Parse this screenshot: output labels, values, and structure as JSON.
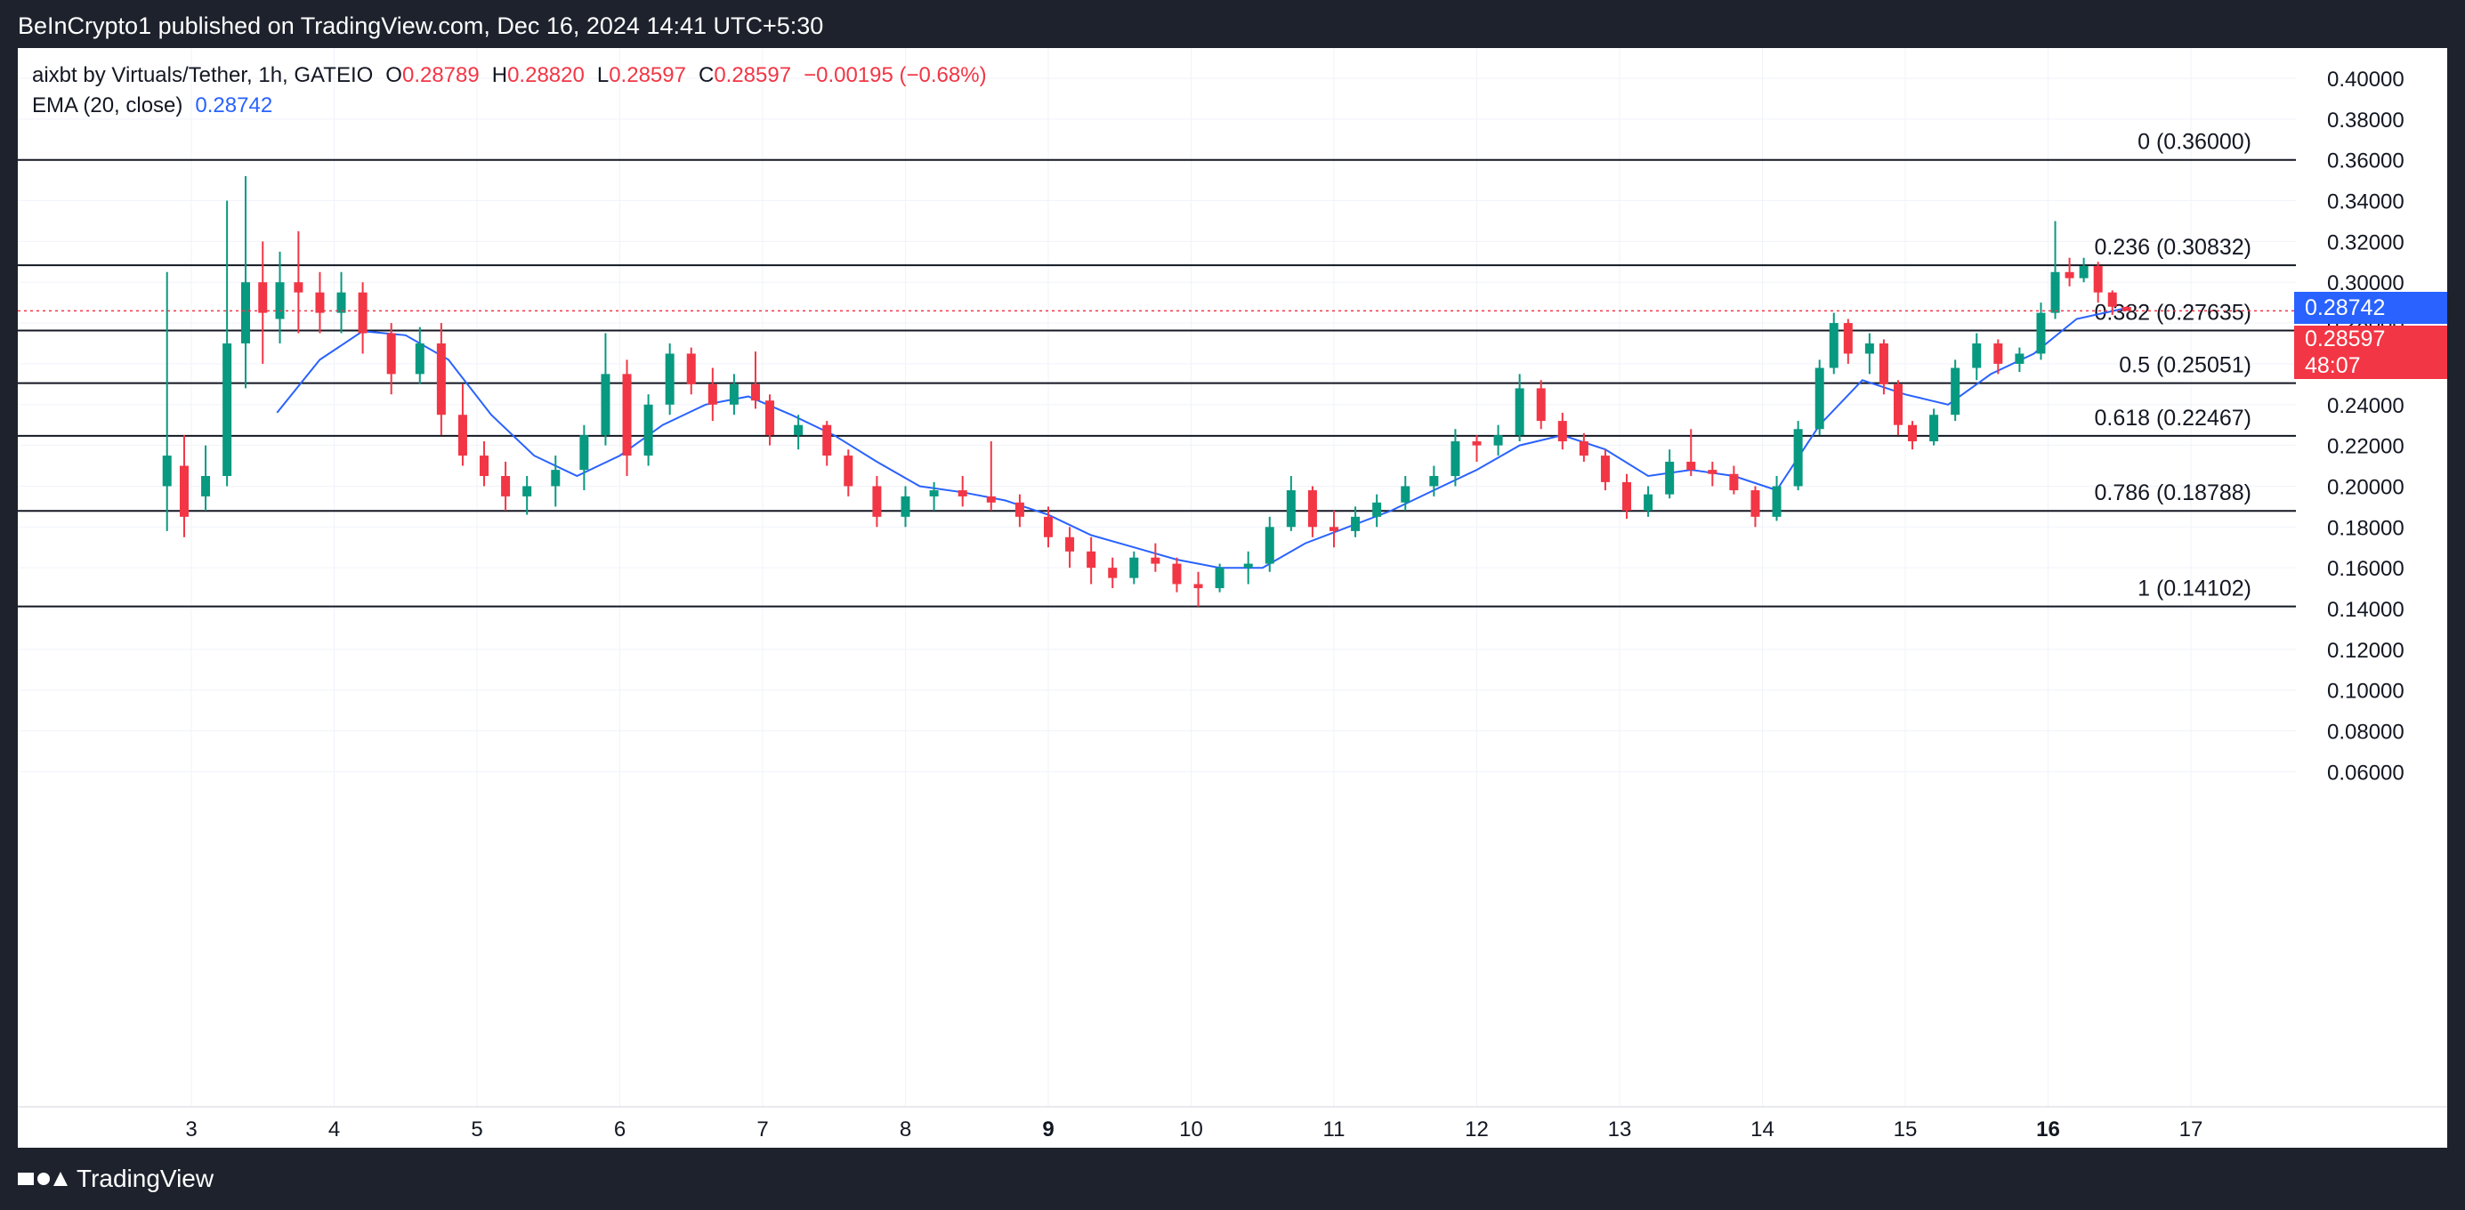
{
  "header": {
    "publisher": "BeInCrypto1 published on TradingView.com, Dec 16, 2024 14:41 UTC+5:30"
  },
  "legend": {
    "symbol": "aixbt by Virtuals/Tether, 1h, GATEIO",
    "o_label": "O",
    "o": "0.28789",
    "h_label": "H",
    "h": "0.28820",
    "l_label": "L",
    "l": "0.28597",
    "c_label": "C",
    "c": "0.28597",
    "change": "−0.00195 (−0.68%)",
    "ema_label": "EMA (20, close)",
    "ema": "0.28742"
  },
  "badges": {
    "ema_price": "0.28742",
    "last_price": "0.28597",
    "countdown": "48:07"
  },
  "footer": {
    "brand": "TradingView"
  },
  "colors": {
    "up": "#089981",
    "down": "#f23645",
    "ema": "#2962ff",
    "fib_line": "#131722",
    "grid": "#f0f3fa"
  },
  "chart_data": {
    "type": "candlestick",
    "title": "aixbt by Virtuals/Tether, 1h, GATEIO",
    "ylim": [
      0.03,
      0.41
    ],
    "y_ticks": [
      "0.40000",
      "0.38000",
      "0.36000",
      "0.34000",
      "0.32000",
      "0.30000",
      "0.28000",
      "0.26000",
      "0.24000",
      "0.22000",
      "0.20000",
      "0.18000",
      "0.16000",
      "0.14000",
      "0.12000",
      "0.10000",
      "0.08000",
      "0.06000"
    ],
    "x_ticks": [
      "3",
      "4",
      "5",
      "6",
      "7",
      "8",
      "9",
      "10",
      "11",
      "12",
      "13",
      "14",
      "15",
      "16",
      "17"
    ],
    "x_ticks_bold": [
      "9",
      "16"
    ],
    "xlim": [
      2.2,
      17.95
    ],
    "grid": true,
    "fib_levels": [
      {
        "ratio": "0",
        "value": 0.36,
        "label": "0 (0.36000)"
      },
      {
        "ratio": "0.236",
        "value": 0.30832,
        "label": "0.236 (0.30832)"
      },
      {
        "ratio": "0.382",
        "value": 0.27635,
        "label": "0.382 (0.27635)"
      },
      {
        "ratio": "0.5",
        "value": 0.25051,
        "label": "0.5 (0.25051)"
      },
      {
        "ratio": "0.618",
        "value": 0.22467,
        "label": "0.618 (0.22467)"
      },
      {
        "ratio": "0.786",
        "value": 0.18788,
        "label": "0.786 (0.18788)"
      },
      {
        "ratio": "1",
        "value": 0.14102,
        "label": "1 (0.14102)"
      }
    ],
    "last_price": 0.28597,
    "ema_value": 0.28742,
    "candles_key": [
      "day",
      "open",
      "high",
      "low",
      "close"
    ],
    "candles": [
      [
        2.83,
        0.2,
        0.305,
        0.178,
        0.215
      ],
      [
        2.95,
        0.21,
        0.225,
        0.175,
        0.185
      ],
      [
        3.1,
        0.195,
        0.22,
        0.188,
        0.205
      ],
      [
        3.25,
        0.205,
        0.34,
        0.2,
        0.27
      ],
      [
        3.38,
        0.27,
        0.352,
        0.248,
        0.3
      ],
      [
        3.5,
        0.3,
        0.32,
        0.26,
        0.285
      ],
      [
        3.62,
        0.282,
        0.315,
        0.27,
        0.3
      ],
      [
        3.75,
        0.3,
        0.325,
        0.275,
        0.295
      ],
      [
        3.9,
        0.295,
        0.305,
        0.275,
        0.285
      ],
      [
        4.05,
        0.285,
        0.305,
        0.275,
        0.295
      ],
      [
        4.2,
        0.295,
        0.3,
        0.265,
        0.275
      ],
      [
        4.4,
        0.275,
        0.28,
        0.245,
        0.255
      ],
      [
        4.6,
        0.255,
        0.278,
        0.25,
        0.27
      ],
      [
        4.75,
        0.27,
        0.28,
        0.225,
        0.235
      ],
      [
        4.9,
        0.235,
        0.25,
        0.21,
        0.215
      ],
      [
        5.05,
        0.215,
        0.222,
        0.2,
        0.205
      ],
      [
        5.2,
        0.205,
        0.212,
        0.188,
        0.195
      ],
      [
        5.35,
        0.195,
        0.205,
        0.186,
        0.2
      ],
      [
        5.55,
        0.2,
        0.215,
        0.19,
        0.208
      ],
      [
        5.75,
        0.208,
        0.23,
        0.198,
        0.225
      ],
      [
        5.9,
        0.225,
        0.275,
        0.22,
        0.255
      ],
      [
        6.05,
        0.255,
        0.262,
        0.205,
        0.215
      ],
      [
        6.2,
        0.215,
        0.245,
        0.21,
        0.24
      ],
      [
        6.35,
        0.24,
        0.27,
        0.235,
        0.265
      ],
      [
        6.5,
        0.265,
        0.268,
        0.245,
        0.25
      ],
      [
        6.65,
        0.25,
        0.258,
        0.232,
        0.24
      ],
      [
        6.8,
        0.24,
        0.255,
        0.235,
        0.25
      ],
      [
        6.95,
        0.25,
        0.266,
        0.238,
        0.242
      ],
      [
        7.05,
        0.242,
        0.245,
        0.22,
        0.225
      ],
      [
        7.25,
        0.225,
        0.235,
        0.218,
        0.23
      ],
      [
        7.45,
        0.23,
        0.232,
        0.21,
        0.215
      ],
      [
        7.6,
        0.215,
        0.218,
        0.195,
        0.2
      ],
      [
        7.8,
        0.2,
        0.205,
        0.18,
        0.185
      ],
      [
        8.0,
        0.185,
        0.2,
        0.18,
        0.195
      ],
      [
        8.2,
        0.195,
        0.202,
        0.188,
        0.198
      ],
      [
        8.4,
        0.198,
        0.205,
        0.19,
        0.195
      ],
      [
        8.6,
        0.195,
        0.222,
        0.188,
        0.192
      ],
      [
        8.8,
        0.192,
        0.196,
        0.18,
        0.185
      ],
      [
        9.0,
        0.185,
        0.19,
        0.17,
        0.175
      ],
      [
        9.15,
        0.175,
        0.18,
        0.16,
        0.168
      ],
      [
        9.3,
        0.168,
        0.175,
        0.152,
        0.16
      ],
      [
        9.45,
        0.16,
        0.165,
        0.15,
        0.155
      ],
      [
        9.6,
        0.155,
        0.168,
        0.152,
        0.165
      ],
      [
        9.75,
        0.165,
        0.172,
        0.158,
        0.162
      ],
      [
        9.9,
        0.162,
        0.165,
        0.148,
        0.152
      ],
      [
        10.05,
        0.152,
        0.158,
        0.141,
        0.15
      ],
      [
        10.2,
        0.15,
        0.162,
        0.148,
        0.16
      ],
      [
        10.4,
        0.16,
        0.168,
        0.152,
        0.162
      ],
      [
        10.55,
        0.162,
        0.185,
        0.158,
        0.18
      ],
      [
        10.7,
        0.18,
        0.205,
        0.178,
        0.198
      ],
      [
        10.85,
        0.198,
        0.2,
        0.175,
        0.18
      ],
      [
        11.0,
        0.18,
        0.188,
        0.17,
        0.178
      ],
      [
        11.15,
        0.178,
        0.19,
        0.175,
        0.185
      ],
      [
        11.3,
        0.185,
        0.196,
        0.18,
        0.192
      ],
      [
        11.5,
        0.192,
        0.205,
        0.188,
        0.2
      ],
      [
        11.7,
        0.2,
        0.21,
        0.195,
        0.205
      ],
      [
        11.85,
        0.205,
        0.228,
        0.2,
        0.222
      ],
      [
        12.0,
        0.222,
        0.225,
        0.212,
        0.22
      ],
      [
        12.15,
        0.22,
        0.23,
        0.215,
        0.225
      ],
      [
        12.3,
        0.225,
        0.255,
        0.222,
        0.248
      ],
      [
        12.45,
        0.248,
        0.252,
        0.228,
        0.232
      ],
      [
        12.6,
        0.232,
        0.236,
        0.218,
        0.222
      ],
      [
        12.75,
        0.222,
        0.226,
        0.212,
        0.215
      ],
      [
        12.9,
        0.215,
        0.218,
        0.198,
        0.202
      ],
      [
        13.05,
        0.202,
        0.206,
        0.184,
        0.188
      ],
      [
        13.2,
        0.188,
        0.2,
        0.185,
        0.196
      ],
      [
        13.35,
        0.196,
        0.218,
        0.194,
        0.212
      ],
      [
        13.5,
        0.212,
        0.228,
        0.205,
        0.208
      ],
      [
        13.65,
        0.208,
        0.212,
        0.2,
        0.206
      ],
      [
        13.8,
        0.206,
        0.21,
        0.196,
        0.198
      ],
      [
        13.95,
        0.198,
        0.2,
        0.18,
        0.185
      ],
      [
        14.1,
        0.185,
        0.205,
        0.183,
        0.2
      ],
      [
        14.25,
        0.2,
        0.232,
        0.198,
        0.228
      ],
      [
        14.4,
        0.228,
        0.262,
        0.225,
        0.258
      ],
      [
        14.5,
        0.258,
        0.285,
        0.255,
        0.28
      ],
      [
        14.6,
        0.28,
        0.282,
        0.26,
        0.265
      ],
      [
        14.75,
        0.265,
        0.275,
        0.255,
        0.27
      ],
      [
        14.85,
        0.27,
        0.272,
        0.245,
        0.25
      ],
      [
        14.95,
        0.25,
        0.252,
        0.225,
        0.23
      ],
      [
        15.05,
        0.23,
        0.232,
        0.218,
        0.222
      ],
      [
        15.2,
        0.222,
        0.238,
        0.22,
        0.235
      ],
      [
        15.35,
        0.235,
        0.262,
        0.232,
        0.258
      ],
      [
        15.5,
        0.258,
        0.275,
        0.252,
        0.27
      ],
      [
        15.65,
        0.27,
        0.272,
        0.255,
        0.26
      ],
      [
        15.8,
        0.26,
        0.268,
        0.256,
        0.265
      ],
      [
        15.95,
        0.265,
        0.29,
        0.262,
        0.285
      ],
      [
        16.05,
        0.285,
        0.33,
        0.282,
        0.305
      ],
      [
        16.15,
        0.305,
        0.312,
        0.298,
        0.302
      ],
      [
        16.25,
        0.302,
        0.312,
        0.3,
        0.308
      ],
      [
        16.35,
        0.308,
        0.31,
        0.29,
        0.295
      ],
      [
        16.45,
        0.295,
        0.296,
        0.284,
        0.288
      ],
      [
        16.55,
        0.28789,
        0.2882,
        0.28597,
        0.28597
      ]
    ],
    "ema_series": [
      [
        3.6,
        0.236
      ],
      [
        3.9,
        0.262
      ],
      [
        4.2,
        0.276
      ],
      [
        4.5,
        0.274
      ],
      [
        4.8,
        0.262
      ],
      [
        5.1,
        0.235
      ],
      [
        5.4,
        0.215
      ],
      [
        5.7,
        0.205
      ],
      [
        6.0,
        0.215
      ],
      [
        6.3,
        0.23
      ],
      [
        6.6,
        0.24
      ],
      [
        6.9,
        0.244
      ],
      [
        7.2,
        0.235
      ],
      [
        7.5,
        0.225
      ],
      [
        7.8,
        0.212
      ],
      [
        8.1,
        0.2
      ],
      [
        8.4,
        0.197
      ],
      [
        8.7,
        0.193
      ],
      [
        9.0,
        0.186
      ],
      [
        9.3,
        0.176
      ],
      [
        9.6,
        0.17
      ],
      [
        9.9,
        0.164
      ],
      [
        10.2,
        0.16
      ],
      [
        10.5,
        0.16
      ],
      [
        10.8,
        0.172
      ],
      [
        11.1,
        0.18
      ],
      [
        11.4,
        0.188
      ],
      [
        11.7,
        0.198
      ],
      [
        12.0,
        0.208
      ],
      [
        12.3,
        0.22
      ],
      [
        12.6,
        0.225
      ],
      [
        12.9,
        0.218
      ],
      [
        13.2,
        0.205
      ],
      [
        13.5,
        0.208
      ],
      [
        13.8,
        0.205
      ],
      [
        14.1,
        0.198
      ],
      [
        14.4,
        0.23
      ],
      [
        14.7,
        0.252
      ],
      [
        15.0,
        0.245
      ],
      [
        15.3,
        0.24
      ],
      [
        15.6,
        0.255
      ],
      [
        15.9,
        0.265
      ],
      [
        16.2,
        0.282
      ],
      [
        16.55,
        0.28742
      ]
    ]
  }
}
